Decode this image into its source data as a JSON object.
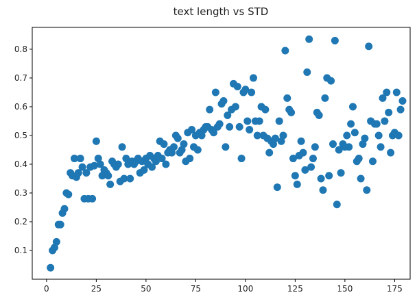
{
  "chart_data": {
    "type": "scatter",
    "title": "text length vs STD",
    "color": "#1f77b4",
    "x": [
      2,
      3,
      4,
      5,
      6,
      7,
      8,
      9,
      10,
      11,
      12,
      13,
      14,
      15,
      16,
      17,
      18,
      19,
      20,
      21,
      22,
      23,
      24,
      25,
      26,
      27,
      28,
      29,
      30,
      31,
      32,
      33,
      34,
      35,
      36,
      37,
      38,
      39,
      40,
      41,
      42,
      43,
      44,
      45,
      46,
      47,
      48,
      49,
      50,
      51,
      52,
      53,
      54,
      55,
      56,
      57,
      58,
      59,
      60,
      61,
      62,
      63,
      64,
      65,
      66,
      67,
      68,
      69,
      70,
      71,
      72,
      73,
      74,
      75,
      76,
      77,
      78,
      79,
      80,
      81,
      82,
      83,
      84,
      85,
      86,
      87,
      88,
      89,
      90,
      91,
      92,
      93,
      94,
      95,
      96,
      97,
      98,
      99,
      100,
      101,
      102,
      103,
      104,
      105,
      106,
      107,
      108,
      109,
      110,
      111,
      112,
      113,
      114,
      115,
      116,
      117,
      118,
      119,
      120,
      121,
      122,
      123,
      124,
      125,
      126,
      127,
      128,
      129,
      130,
      131,
      132,
      133,
      134,
      135,
      136,
      137,
      138,
      139,
      140,
      141,
      142,
      143,
      144,
      145,
      146,
      147,
      148,
      149,
      150,
      151,
      152,
      153,
      154,
      155,
      156,
      157,
      158,
      159,
      160,
      161,
      162,
      163,
      164,
      165,
      166,
      167,
      168,
      169,
      170,
      171,
      172,
      173,
      174,
      175,
      176,
      177,
      178,
      179
    ],
    "values": [
      0.04,
      0.1,
      0.11,
      0.13,
      0.19,
      0.19,
      0.23,
      0.245,
      0.3,
      0.295,
      0.37,
      0.36,
      0.42,
      0.355,
      0.37,
      0.42,
      0.39,
      0.28,
      0.37,
      0.28,
      0.39,
      0.28,
      0.395,
      0.48,
      0.42,
      0.4,
      0.36,
      0.38,
      0.37,
      0.36,
      0.33,
      0.41,
      0.4,
      0.39,
      0.4,
      0.34,
      0.46,
      0.35,
      0.42,
      0.4,
      0.35,
      0.41,
      0.4,
      0.41,
      0.42,
      0.37,
      0.41,
      0.38,
      0.42,
      0.4,
      0.43,
      0.39,
      0.42,
      0.41,
      0.43,
      0.48,
      0.42,
      0.47,
      0.4,
      0.44,
      0.45,
      0.44,
      0.46,
      0.5,
      0.49,
      0.44,
      0.45,
      0.47,
      0.41,
      0.51,
      0.42,
      0.52,
      0.46,
      0.5,
      0.45,
      0.51,
      0.5,
      0.52,
      0.53,
      0.53,
      0.59,
      0.52,
      0.51,
      0.65,
      0.53,
      0.54,
      0.61,
      0.62,
      0.46,
      0.57,
      0.53,
      0.59,
      0.68,
      0.6,
      0.67,
      0.53,
      0.42,
      0.65,
      0.66,
      0.55,
      0.52,
      0.65,
      0.7,
      0.55,
      0.5,
      0.55,
      0.6,
      0.5,
      0.59,
      0.49,
      0.44,
      0.48,
      0.47,
      0.49,
      0.32,
      0.55,
      0.48,
      0.5,
      0.795,
      0.63,
      0.59,
      0.58,
      0.42,
      0.36,
      0.33,
      0.43,
      0.48,
      0.44,
      0.38,
      0.72,
      0.835,
      0.39,
      0.42,
      0.46,
      0.58,
      0.57,
      0.35,
      0.31,
      0.63,
      0.7,
      0.36,
      0.69,
      0.47,
      0.83,
      0.26,
      0.45,
      0.37,
      0.47,
      0.46,
      0.5,
      0.46,
      0.54,
      0.6,
      0.51,
      0.41,
      0.42,
      0.35,
      0.47,
      0.49,
      0.31,
      0.81,
      0.55,
      0.41,
      0.54,
      0.54,
      0.5,
      0.46,
      0.63,
      0.55,
      0.65,
      0.58,
      0.44,
      0.5,
      0.51,
      0.65,
      0.5,
      0.59,
      0.62
    ],
    "xlim": [
      -7.2,
      182.8
    ],
    "xticks": [
      0,
      25,
      50,
      75,
      100,
      125,
      150,
      175
    ],
    "ylim": [
      0.0,
      0.876
    ],
    "yticks": [
      0.1,
      0.2,
      0.3,
      0.4,
      0.5,
      0.6,
      0.7,
      0.8
    ]
  }
}
